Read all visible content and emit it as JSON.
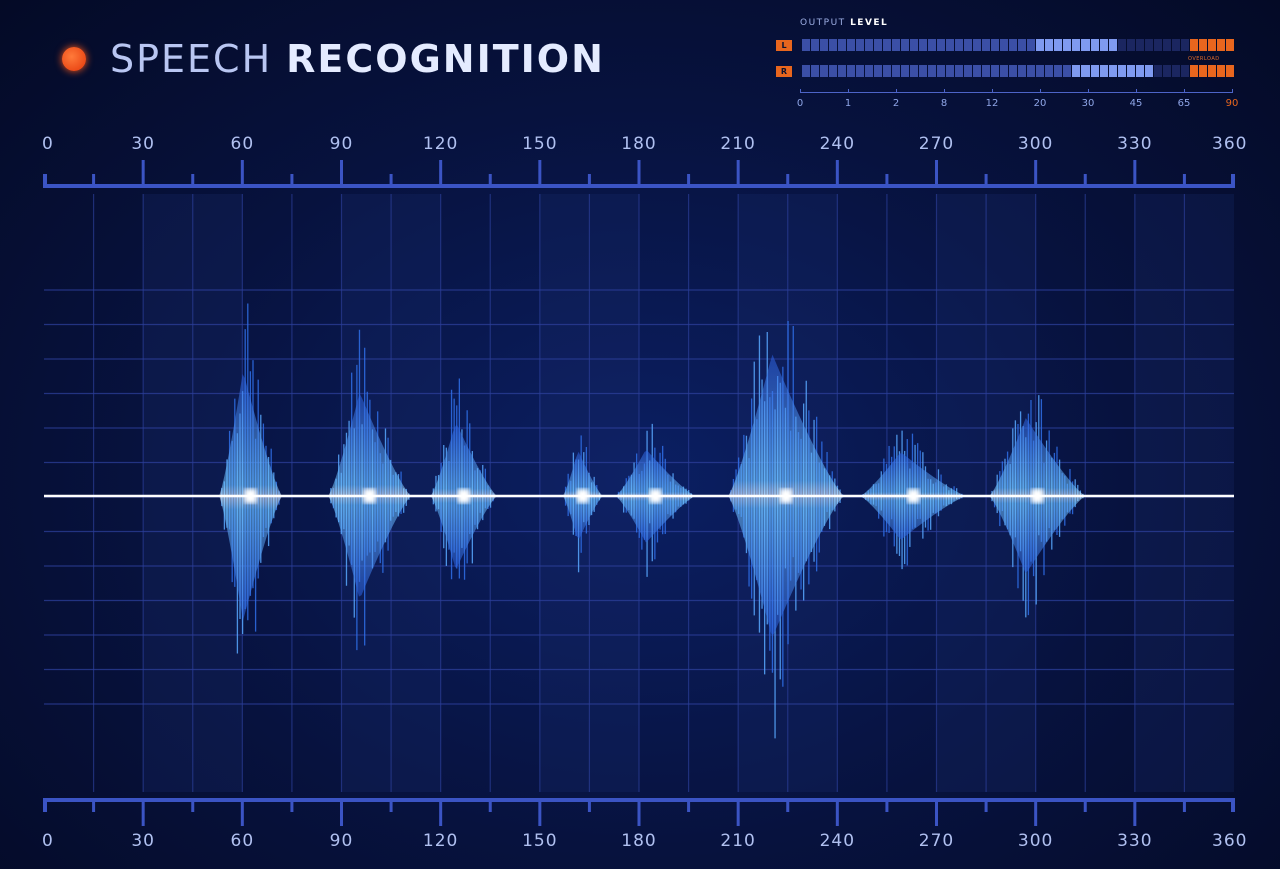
{
  "title": {
    "word1": "SPEECH",
    "word2": "RECOGNITION"
  },
  "output_meter": {
    "label_prefix": "OUTPUT",
    "label_bold": "LEVEL",
    "channels": [
      {
        "tag": "L",
        "level_fraction": 0.72
      },
      {
        "tag": "R",
        "level_fraction": 0.82
      }
    ],
    "overload_label": "OVERLOAD",
    "scale": [
      "0",
      "1",
      "2",
      "8",
      "12",
      "20",
      "30",
      "45",
      "65",
      "90"
    ],
    "overload_color": "#e8661e"
  },
  "ruler": {
    "labels": [
      "0",
      "30",
      "60",
      "90",
      "120",
      "150",
      "180",
      "210",
      "240",
      "270",
      "300",
      "330",
      "360"
    ],
    "min": 0,
    "max": 360
  },
  "colors": {
    "accent": "#3b54c4",
    "wave_core": "#ffffff",
    "wave_blue": "#3a8cff",
    "status_dot": "#ff5a1a"
  },
  "chart_data": {
    "type": "area",
    "title": "SPEECH RECOGNITION",
    "xlabel": "",
    "ylabel": "",
    "xlim": [
      0,
      360
    ],
    "ylim": [
      -1,
      1
    ],
    "grid": true,
    "bursts": [
      {
        "start": 53,
        "end": 72,
        "peak_amp": 0.88
      },
      {
        "start": 86,
        "end": 111,
        "peak_amp": 0.73
      },
      {
        "start": 117,
        "end": 137,
        "peak_amp": 0.52
      },
      {
        "start": 157,
        "end": 169,
        "peak_amp": 0.32
      },
      {
        "start": 173,
        "end": 197,
        "peak_amp": 0.33
      },
      {
        "start": 207,
        "end": 242,
        "peak_amp": 1.0
      },
      {
        "start": 247,
        "end": 279,
        "peak_amp": 0.31
      },
      {
        "start": 286,
        "end": 315,
        "peak_amp": 0.55
      }
    ]
  }
}
